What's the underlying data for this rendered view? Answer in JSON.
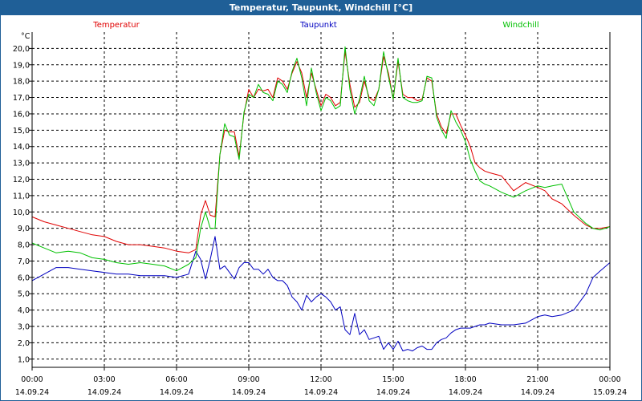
{
  "window": {
    "title": "Temperatur, Taupunkt, Windchill [°C]"
  },
  "chart_data": {
    "type": "line",
    "title": "Temperatur, Taupunkt, Windchill [°C]",
    "ylabel": "°C",
    "xlabel": "",
    "ylim": [
      0.5,
      21.0
    ],
    "xlim_hours": [
      0,
      24
    ],
    "grid": true,
    "yticks": [
      1.0,
      2.0,
      3.0,
      4.0,
      5.0,
      6.0,
      7.0,
      8.0,
      9.0,
      10.0,
      11.0,
      12.0,
      13.0,
      14.0,
      15.0,
      16.0,
      17.0,
      18.0,
      19.0,
      20.0
    ],
    "ytick_labels": [
      "1,0",
      "2,0",
      "3,0",
      "4,0",
      "5,0",
      "6,0",
      "7,0",
      "8,0",
      "9,0",
      "10,0",
      "11,0",
      "12,0",
      "13,0",
      "14,0",
      "15,0",
      "16,0",
      "17,0",
      "18,0",
      "19,0",
      "20,0"
    ],
    "xticks": [
      {
        "hour": 0,
        "time": "00:00",
        "date": "14.09.24"
      },
      {
        "hour": 3,
        "time": "03:00",
        "date": "14.09.24"
      },
      {
        "hour": 6,
        "time": "06:00",
        "date": "14.09.24"
      },
      {
        "hour": 9,
        "time": "09:00",
        "date": "14.09.24"
      },
      {
        "hour": 12,
        "time": "12:00",
        "date": "14.09.24"
      },
      {
        "hour": 15,
        "time": "15:00",
        "date": "14.09.24"
      },
      {
        "hour": 18,
        "time": "18:00",
        "date": "14.09.24"
      },
      {
        "hour": 21,
        "time": "21:00",
        "date": "14.09.24"
      },
      {
        "hour": 24,
        "time": "00:00",
        "date": "15.09.24"
      }
    ],
    "series": [
      {
        "name": "Temperatur",
        "color": "#e00000",
        "x": [
          0,
          0.5,
          1,
          1.5,
          2,
          2.5,
          3,
          3.5,
          4,
          4.5,
          5,
          5.5,
          6,
          6.5,
          6.8,
          7.0,
          7.2,
          7.4,
          7.6,
          7.8,
          8.0,
          8.2,
          8.4,
          8.6,
          8.8,
          9.0,
          9.2,
          9.4,
          9.6,
          9.8,
          10.0,
          10.2,
          10.4,
          10.6,
          10.8,
          11.0,
          11.2,
          11.4,
          11.6,
          11.8,
          12.0,
          12.2,
          12.4,
          12.6,
          12.8,
          13.0,
          13.2,
          13.4,
          13.6,
          13.8,
          14.0,
          14.2,
          14.4,
          14.6,
          14.8,
          15.0,
          15.2,
          15.4,
          15.6,
          15.8,
          16.0,
          16.2,
          16.4,
          16.6,
          16.8,
          17.0,
          17.2,
          17.4,
          17.6,
          17.8,
          18.0,
          18.2,
          18.4,
          18.6,
          18.8,
          19.0,
          19.5,
          20.0,
          20.5,
          21.0,
          21.3,
          21.6,
          22.0,
          22.5,
          23.0,
          23.3,
          23.6,
          24.0
        ],
        "values": [
          9.7,
          9.4,
          9.2,
          9.0,
          8.8,
          8.6,
          8.5,
          8.2,
          8.0,
          8.0,
          7.9,
          7.8,
          7.6,
          7.5,
          7.7,
          9.8,
          10.7,
          9.8,
          9.7,
          13.5,
          15.0,
          14.9,
          14.9,
          13.4,
          16.0,
          17.5,
          17.0,
          17.5,
          17.4,
          17.5,
          17.0,
          18.2,
          18.0,
          17.5,
          18.5,
          19.2,
          18.5,
          17.0,
          18.5,
          17.5,
          16.5,
          17.2,
          17.0,
          16.5,
          16.7,
          19.8,
          17.8,
          16.4,
          16.7,
          18.0,
          17.0,
          16.8,
          17.5,
          19.5,
          18.5,
          16.9,
          19.2,
          17.2,
          17.0,
          17.0,
          16.8,
          16.9,
          18.2,
          18.0,
          16.0,
          15.2,
          14.8,
          16.0,
          16.0,
          15.3,
          14.7,
          14.0,
          13.0,
          12.7,
          12.5,
          12.4,
          12.2,
          11.3,
          11.8,
          11.5,
          11.3,
          10.8,
          10.5,
          9.8,
          9.2,
          9.0,
          9.0,
          9.1
        ]
      },
      {
        "name": "Taupunkt",
        "color": "#0000c0",
        "x": [
          0,
          0.5,
          1,
          1.5,
          2,
          2.5,
          3,
          3.5,
          4,
          4.5,
          5,
          5.5,
          6,
          6.5,
          6.8,
          7.0,
          7.2,
          7.4,
          7.6,
          7.8,
          8.0,
          8.2,
          8.4,
          8.6,
          8.8,
          9.0,
          9.2,
          9.4,
          9.6,
          9.8,
          10.0,
          10.2,
          10.4,
          10.6,
          10.8,
          11.0,
          11.2,
          11.4,
          11.6,
          11.8,
          12.0,
          12.2,
          12.4,
          12.6,
          12.8,
          13.0,
          13.2,
          13.4,
          13.6,
          13.8,
          14.0,
          14.2,
          14.4,
          14.6,
          14.8,
          15.0,
          15.2,
          15.4,
          15.6,
          15.8,
          16.0,
          16.2,
          16.4,
          16.6,
          16.8,
          17.0,
          17.2,
          17.4,
          17.6,
          17.8,
          18.0,
          18.2,
          18.4,
          18.6,
          18.8,
          19.0,
          19.5,
          20.0,
          20.5,
          21.0,
          21.3,
          21.6,
          22.0,
          22.5,
          23.0,
          23.3,
          23.6,
          24.0
        ],
        "values": [
          5.8,
          6.2,
          6.6,
          6.6,
          6.5,
          6.4,
          6.3,
          6.2,
          6.2,
          6.1,
          6.1,
          6.1,
          6.0,
          6.2,
          7.6,
          7.1,
          5.9,
          7.1,
          8.5,
          6.5,
          6.7,
          6.3,
          5.9,
          6.6,
          6.9,
          6.9,
          6.5,
          6.5,
          6.2,
          6.5,
          6.0,
          5.8,
          5.8,
          5.5,
          4.8,
          4.5,
          4.0,
          4.9,
          4.5,
          4.8,
          5.0,
          4.8,
          4.5,
          4.0,
          4.2,
          2.8,
          2.5,
          3.8,
          2.5,
          2.8,
          2.2,
          2.3,
          2.4,
          1.6,
          2.0,
          1.6,
          2.1,
          1.5,
          1.6,
          1.5,
          1.7,
          1.8,
          1.6,
          1.6,
          2.0,
          2.2,
          2.3,
          2.6,
          2.8,
          2.9,
          2.9,
          2.9,
          3.0,
          3.1,
          3.1,
          3.2,
          3.1,
          3.1,
          3.2,
          3.6,
          3.7,
          3.6,
          3.7,
          4.0,
          5.0,
          6.0,
          6.4,
          6.9
        ]
      },
      {
        "name": "Windchill",
        "color": "#00c000",
        "x": [
          0,
          0.5,
          1,
          1.5,
          2,
          2.5,
          3,
          3.5,
          4,
          4.5,
          5,
          5.5,
          6,
          6.5,
          6.8,
          7.0,
          7.2,
          7.4,
          7.6,
          7.8,
          8.0,
          8.2,
          8.4,
          8.6,
          8.8,
          9.0,
          9.2,
          9.4,
          9.6,
          9.8,
          10.0,
          10.2,
          10.4,
          10.6,
          10.8,
          11.0,
          11.2,
          11.4,
          11.6,
          11.8,
          12.0,
          12.2,
          12.4,
          12.6,
          12.8,
          13.0,
          13.2,
          13.4,
          13.6,
          13.8,
          14.0,
          14.2,
          14.4,
          14.6,
          14.8,
          15.0,
          15.2,
          15.4,
          15.6,
          15.8,
          16.0,
          16.2,
          16.4,
          16.6,
          16.8,
          17.0,
          17.2,
          17.4,
          17.6,
          17.8,
          18.0,
          18.2,
          18.4,
          18.6,
          18.8,
          19.0,
          19.5,
          20.0,
          20.5,
          21.0,
          21.3,
          21.6,
          22.0,
          22.5,
          23.0,
          23.3,
          23.6,
          24.0
        ],
        "values": [
          8.1,
          7.8,
          7.5,
          7.6,
          7.5,
          7.2,
          7.1,
          6.9,
          6.8,
          6.9,
          6.8,
          6.7,
          6.4,
          6.8,
          7.2,
          9.0,
          10.0,
          9.0,
          9.0,
          13.5,
          15.4,
          14.7,
          14.6,
          13.2,
          16.1,
          17.2,
          17.0,
          17.8,
          17.3,
          17.2,
          16.8,
          18.0,
          17.8,
          17.3,
          18.6,
          19.4,
          18.2,
          16.5,
          18.8,
          17.3,
          16.2,
          17.0,
          16.8,
          16.3,
          16.5,
          20.1,
          17.5,
          16.0,
          16.9,
          18.3,
          16.8,
          16.5,
          17.5,
          19.8,
          18.3,
          16.9,
          19.4,
          17.0,
          16.8,
          16.7,
          16.7,
          16.8,
          18.3,
          18.2,
          15.8,
          15.0,
          14.5,
          16.2,
          15.5,
          15.0,
          14.3,
          13.2,
          12.5,
          11.9,
          11.7,
          11.6,
          11.2,
          10.9,
          11.3,
          11.6,
          11.5,
          11.6,
          11.7,
          10.0,
          9.3,
          9.0,
          8.9,
          9.1
        ]
      }
    ]
  }
}
